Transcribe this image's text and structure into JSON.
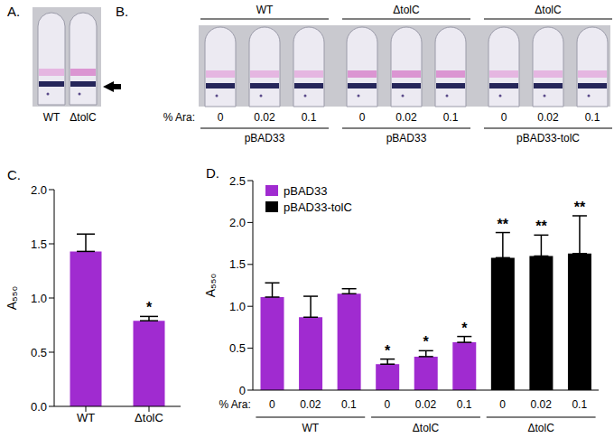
{
  "panel_a": {
    "panel_label": "A.",
    "tubes": [
      "WT",
      "ΔtolC"
    ]
  },
  "panel_b": {
    "panel_label": "B.",
    "ara_label": "% Ara:",
    "groups": [
      {
        "strain": "WT",
        "plasmid": "pBAD33",
        "ara": [
          "0",
          "0.02",
          "0.1"
        ]
      },
      {
        "strain": "ΔtolC",
        "plasmid": "pBAD33",
        "ara": [
          "0",
          "0.02",
          "0.1"
        ]
      },
      {
        "strain": "ΔtolC",
        "plasmid": "pBAD33-tolC",
        "ara": [
          "0",
          "0.02",
          "0.1"
        ]
      }
    ]
  },
  "chart_data": [
    {
      "panel_label": "C.",
      "type": "bar",
      "y_label": "A₅₅₀",
      "categories": [
        "WT",
        "ΔtolC"
      ],
      "values": [
        1.43,
        0.79
      ],
      "errors": [
        0.16,
        0.04
      ],
      "significance": [
        null,
        "*"
      ],
      "color": "#a02bd0",
      "ylim": [
        0,
        2
      ],
      "yticks": [
        {
          "value": 0,
          "label": "0.0"
        },
        0.5,
        {
          "value": 1,
          "label": "1.0"
        },
        1.5,
        {
          "value": 2,
          "label": "2.0"
        }
      ]
    },
    {
      "panel_label": "D.",
      "type": "bar",
      "y_label": "A₅₅₀",
      "x_label": "% Ara:",
      "categories": [
        "0",
        "0.02",
        "0.1",
        "0",
        "0.02",
        "0.1",
        "0",
        "0.02",
        "0.1"
      ],
      "groups": [
        {
          "label": "WT",
          "size": 3
        },
        {
          "label": "ΔtolC",
          "size": 3
        },
        {
          "label": "ΔtolC",
          "size": 3
        }
      ],
      "series": [
        {
          "name": "pBAD33",
          "color": "#a02bd0",
          "values": [
            1.11,
            0.87,
            1.15,
            0.31,
            0.4,
            0.57,
            null,
            null,
            null
          ],
          "errors": [
            0.17,
            0.25,
            0.06,
            0.06,
            0.07,
            0.07,
            null,
            null,
            null
          ]
        },
        {
          "name": "pBAD33-tolC",
          "color": "#000000",
          "values": [
            null,
            null,
            null,
            null,
            null,
            null,
            1.58,
            1.6,
            1.63
          ],
          "errors": [
            null,
            null,
            null,
            null,
            null,
            null,
            0.3,
            0.25,
            0.45
          ]
        }
      ],
      "significance": [
        null,
        null,
        null,
        "*",
        "*",
        "*",
        "**",
        "**",
        "**"
      ],
      "ylim": [
        0,
        2.5
      ],
      "yticks": [
        0,
        0.5,
        {
          "value": 1,
          "label": "1.0"
        },
        1.5,
        {
          "value": 2,
          "label": "2.0"
        },
        2.5
      ],
      "legend": "upper left"
    }
  ]
}
